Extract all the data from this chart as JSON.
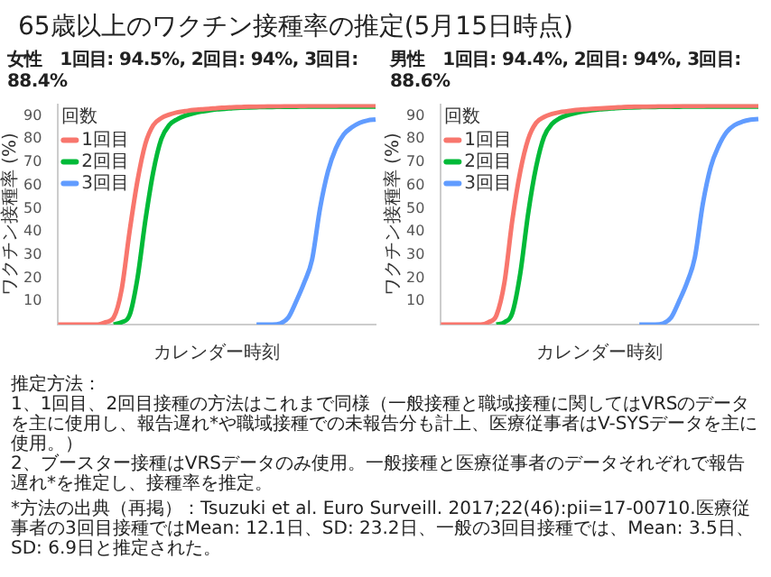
{
  "chart_data": [
    {
      "type": "line",
      "title": "65歳以上のワクチン接種率の推定(5月15日時点)",
      "subtitle": "女性　1回目: 94.5%, 2回目: 94%, 3回目: 88.4%",
      "xlabel": "カレンダー時刻",
      "ylabel": "ワクチン接種率 (%)",
      "legend_title": "回数",
      "categories": [
        null,
        null,
        null,
        null,
        null,
        null,
        null,
        null,
        null,
        null,
        null,
        null,
        null,
        null,
        null,
        null,
        null,
        null,
        null,
        null,
        null,
        null,
        null,
        null,
        null,
        null,
        null,
        null,
        null,
        null,
        null,
        null,
        null,
        null,
        null,
        null,
        null,
        null,
        null,
        null,
        null
      ],
      "series": [
        {
          "name": "1回目",
          "color": "#f8766d",
          "values": [
            0,
            0,
            0,
            0,
            0,
            0,
            1,
            3,
            15,
            40,
            62,
            78,
            86,
            89,
            90.5,
            91.5,
            92,
            92.5,
            92.8,
            93,
            93.3,
            93.5,
            93.7,
            93.8,
            94,
            94,
            94.1,
            94.2,
            94.2,
            94.3,
            94.3,
            94.3,
            94.4,
            94.4,
            94.4,
            94.4,
            94.5,
            94.5,
            94.5,
            94.5,
            94.5
          ]
        },
        {
          "name": "2回目",
          "color": "#00ba38",
          "values": [
            null,
            null,
            null,
            null,
            null,
            null,
            null,
            0,
            1,
            4,
            20,
            45,
            66,
            80,
            86,
            88.5,
            90,
            91,
            91.8,
            92.3,
            92.8,
            93,
            93.3,
            93.5,
            93.6,
            93.7,
            93.8,
            93.8,
            93.9,
            93.9,
            93.9,
            94,
            94,
            94,
            94,
            94,
            94,
            94,
            94,
            94,
            94
          ]
        },
        {
          "name": "3回目",
          "color": "#619cff",
          "values": [
            null,
            null,
            null,
            null,
            null,
            null,
            null,
            null,
            null,
            null,
            null,
            null,
            null,
            null,
            null,
            null,
            null,
            null,
            null,
            null,
            null,
            null,
            null,
            null,
            null,
            0,
            0,
            0,
            0.5,
            3,
            10,
            18,
            28,
            50,
            66,
            76,
            82,
            85,
            87,
            88,
            88.4
          ]
        }
      ],
      "ylim": [
        0,
        95
      ],
      "yticks": [
        10,
        20,
        30,
        40,
        50,
        60,
        70,
        80,
        90
      ],
      "legend": "top left",
      "annotations": [
        "推定方法：",
        "1、1回目、2回目接種の方法はこれまで同様（一般接種と職域接種に関してはVRSのデータを主に使用し、報告遅れ*や職域接種での未報告分も計上、医療従事者はV-SYSデータを主に使用。）",
        "2、ブースター接種はVRSデータのみ使用。一般接種と医療従事者のデータそれぞれで報告遅れ*を推定し、接種率を推定。",
        "*方法の出典（再掲）：Tsuzuki et al. Euro Surveill. 2017;22(46):pii=17-00710.医療従事者の3回目接種ではMean: 12.1日、SD: 23.2日、一般の3回目接種では、Mean: 3.5日、SD: 6.9日と推定された。"
      ]
    },
    {
      "type": "line",
      "subtitle": "男性　1回目: 94.4%, 2回目: 94%, 3回目: 88.6%",
      "xlabel": "カレンダー時刻",
      "ylabel": "ワクチン接種率 (%)",
      "legend_title": "回数",
      "categories": [
        null,
        null,
        null,
        null,
        null,
        null,
        null,
        null,
        null,
        null,
        null,
        null,
        null,
        null,
        null,
        null,
        null,
        null,
        null,
        null,
        null,
        null,
        null,
        null,
        null,
        null,
        null,
        null,
        null,
        null,
        null,
        null,
        null,
        null,
        null,
        null,
        null,
        null,
        null,
        null,
        null
      ],
      "series": [
        {
          "name": "1回目",
          "color": "#f8766d",
          "values": [
            0,
            0,
            0,
            0,
            0,
            0,
            1,
            4,
            18,
            45,
            66,
            80,
            87,
            89.5,
            90.8,
            91.6,
            92,
            92.5,
            92.8,
            93,
            93.2,
            93.4,
            93.6,
            93.8,
            93.9,
            94,
            94,
            94.1,
            94.2,
            94.2,
            94.3,
            94.3,
            94.3,
            94.3,
            94.4,
            94.4,
            94.4,
            94.4,
            94.4,
            94.4,
            94.4
          ]
        },
        {
          "name": "2回目",
          "color": "#00ba38",
          "values": [
            null,
            null,
            null,
            null,
            null,
            null,
            null,
            0,
            1,
            5,
            22,
            48,
            68,
            81,
            86.5,
            89,
            90.3,
            91.2,
            91.9,
            92.4,
            92.8,
            93,
            93.3,
            93.5,
            93.6,
            93.7,
            93.8,
            93.8,
            93.9,
            93.9,
            93.9,
            94,
            94,
            94,
            94,
            94,
            94,
            94,
            94,
            94,
            94
          ]
        },
        {
          "name": "3回目",
          "color": "#619cff",
          "values": [
            null,
            null,
            null,
            null,
            null,
            null,
            null,
            null,
            null,
            null,
            null,
            null,
            null,
            null,
            null,
            null,
            null,
            null,
            null,
            null,
            null,
            null,
            null,
            null,
            null,
            0,
            0,
            0,
            0.5,
            3,
            10,
            18,
            29,
            52,
            68,
            77,
            83,
            86,
            87.5,
            88.3,
            88.6
          ]
        }
      ],
      "ylim": [
        0,
        95
      ],
      "yticks": [
        10,
        20,
        30,
        40,
        50,
        60,
        70,
        80,
        90
      ],
      "legend": "top left"
    }
  ]
}
